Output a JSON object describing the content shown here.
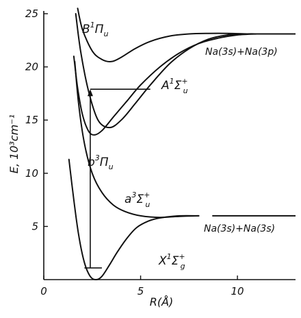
{
  "chart_data": {
    "type": "line",
    "title": "",
    "xlabel": "R(Å)",
    "ylabel": "E, 10³cm⁻¹",
    "xlim": [
      0,
      13
    ],
    "ylim": [
      0,
      25
    ],
    "x_ticks": [
      "0",
      "5",
      "10"
    ],
    "y_ticks": [
      "5",
      "10",
      "15",
      "20",
      "25"
    ],
    "grid": false,
    "legend": "none",
    "line_color": "#111111",
    "series": [
      {
        "id": "X",
        "label": {
          "main": "X",
          "sup": "1",
          "greek": "Σ",
          "sub": "g",
          "supr": "+"
        },
        "x": [
          1.3,
          1.55,
          1.8,
          2.1,
          2.4,
          2.7,
          3.0,
          3.4,
          3.8,
          4.3,
          4.8,
          5.4,
          6.0,
          7.0,
          8.0
        ],
        "y": [
          11.3,
          7.5,
          4.2,
          1.6,
          0.3,
          0.0,
          0.3,
          1.4,
          2.6,
          3.9,
          4.9,
          5.5,
          5.8,
          6.0,
          6.0
        ]
      },
      {
        "id": "a",
        "label": {
          "main": "a",
          "sup": "3",
          "greek": "Σ",
          "sub": "u",
          "supr": "+"
        },
        "x": [
          1.6,
          1.8,
          2.1,
          2.5,
          3.0,
          3.6,
          4.2,
          5.0,
          6.0,
          7.0,
          8.0
        ],
        "y": [
          20.5,
          16.5,
          12.8,
          10.0,
          8.2,
          7.0,
          6.4,
          6.0,
          5.85,
          5.95,
          6.0
        ]
      },
      {
        "id": "b",
        "label": {
          "main": "b",
          "sup": "3",
          "greek": "Π",
          "sub": "u",
          "supr": ""
        },
        "x": [
          1.55,
          1.75,
          2.0,
          2.3,
          2.6,
          3.0,
          3.6,
          4.3,
          5.0,
          6.0,
          7.0,
          8.0,
          9.0,
          10.0,
          11.0
        ],
        "y": [
          21.0,
          18.0,
          15.5,
          14.0,
          13.6,
          14.0,
          15.3,
          16.8,
          18.3,
          20.0,
          21.3,
          22.2,
          22.7,
          23.0,
          23.1
        ]
      },
      {
        "id": "A",
        "label": {
          "main": "A",
          "sup": "1",
          "greek": "Σ",
          "sub": "u",
          "supr": "+"
        },
        "x": [
          1.65,
          1.9,
          2.3,
          2.8,
          3.4,
          4.0,
          4.7,
          5.5,
          6.5,
          7.5,
          8.5,
          9.5,
          10.5,
          11.0
        ],
        "y": [
          25.0,
          21.5,
          17.8,
          15.0,
          14.3,
          15.0,
          16.5,
          18.3,
          20.3,
          21.7,
          22.6,
          23.0,
          23.1,
          23.1
        ]
      },
      {
        "id": "B",
        "label": {
          "main": "B",
          "sup": "1",
          "greek": "Π",
          "sub": "u",
          "supr": ""
        },
        "x": [
          1.75,
          2.0,
          2.5,
          3.0,
          3.5,
          4.0,
          4.7,
          5.5,
          6.5,
          7.5,
          8.5,
          9.5,
          10.5,
          11.0
        ],
        "y": [
          25.5,
          23.5,
          21.5,
          20.7,
          20.5,
          20.9,
          21.7,
          22.4,
          22.9,
          23.1,
          23.15,
          23.15,
          23.1,
          23.1
        ]
      }
    ],
    "asymptotes": [
      {
        "id": "upper",
        "label": "Na(3s)+Na(3p)",
        "x": [
          9.5,
          13.0
        ],
        "y": 23.1
      },
      {
        "id": "lower",
        "label": "Na(3s)+Na(3s)",
        "x": [
          8.7,
          13.0
        ],
        "y": 6.0
      }
    ],
    "transition": {
      "x": 2.4,
      "y_from": 1.1,
      "y_to": 17.9,
      "level_lines": [
        {
          "id": "excited-level",
          "x": [
            2.4,
            5.5
          ],
          "y": 17.9
        },
        {
          "id": "ground-level",
          "x": [
            2.1,
            3.0
          ],
          "y": 1.1
        }
      ]
    }
  }
}
